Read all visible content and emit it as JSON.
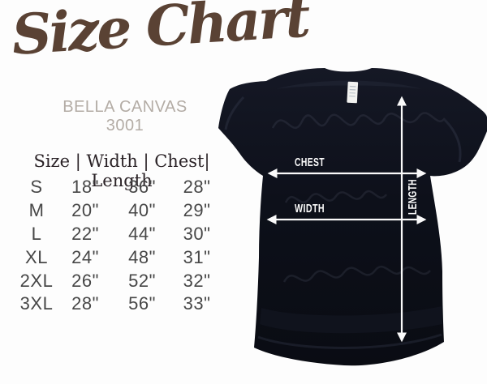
{
  "page": {
    "background": "#fdfdfd"
  },
  "header": {
    "title": "Size Chart",
    "subtitle": "BELLA CANVAS 3001",
    "title_color": "#5a4234",
    "subtitle_color": "#b3aca5"
  },
  "size_table": {
    "header_display": "Size | Width | Chest| Length",
    "columns": [
      "Size",
      "Width",
      "Chest",
      "Length"
    ],
    "rows": [
      [
        "S",
        "18\"",
        "36\"",
        "28\""
      ],
      [
        "M",
        "20\"",
        "40\"",
        "29\""
      ],
      [
        "L",
        "22\"",
        "44\"",
        "30\""
      ],
      [
        "XL",
        "24\"",
        "48\"",
        "31\""
      ],
      [
        "2XL",
        "26\"",
        "52\"",
        "32\""
      ],
      [
        "3XL",
        "28\"",
        "56\"",
        "33\""
      ]
    ]
  },
  "diagram": {
    "labels": {
      "chest": "CHEST",
      "width": "WIDTH",
      "length": "LENGTH"
    },
    "shirt_color": "#0e111a",
    "arrow_color": "#fafafa"
  },
  "chart_data": {
    "type": "table",
    "title": "Size Chart",
    "subtitle": "BELLA CANVAS 3001",
    "columns": [
      "Size",
      "Width",
      "Chest",
      "Length"
    ],
    "rows": [
      [
        "S",
        "18\"",
        "36\"",
        "28\""
      ],
      [
        "M",
        "20\"",
        "40\"",
        "29\""
      ],
      [
        "L",
        "22\"",
        "44\"",
        "30\""
      ],
      [
        "XL",
        "24\"",
        "48\"",
        "31\""
      ],
      [
        "2XL",
        "26\"",
        "52\"",
        "32\""
      ],
      [
        "3XL",
        "28\"",
        "56\"",
        "33\""
      ]
    ],
    "units": "inches",
    "annotations": [
      "CHEST",
      "WIDTH",
      "LENGTH"
    ]
  }
}
